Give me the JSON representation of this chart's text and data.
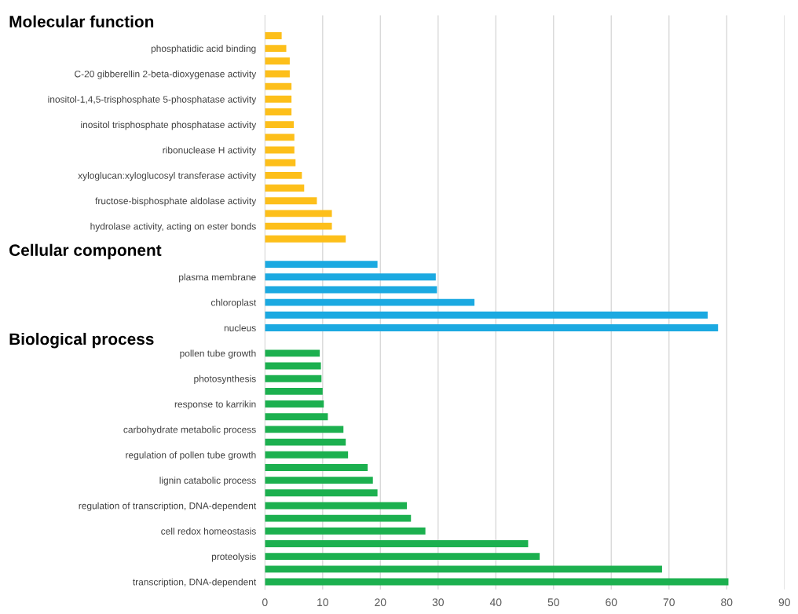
{
  "chart_data": {
    "type": "bar",
    "orientation": "horizontal",
    "grid": "x",
    "legend": false,
    "annotations": [
      "Molecular function",
      "Cellular component",
      "Biological process"
    ],
    "categories": [
      null,
      "phosphatidic acid binding",
      null,
      "C-20 gibberellin 2-beta-dioxygenase activity",
      null,
      "inositol-1,4,5-trisphosphate 5-phosphatase activity",
      null,
      "inositol trisphosphate phosphatase activity",
      null,
      "ribonuclease H activity",
      null,
      "xyloglucan:xyloglucosyl transferase activity",
      null,
      "fructose-bisphosphate aldolase activity",
      null,
      "hydrolase activity, acting on ester bonds",
      null,
      null,
      null,
      "plasma membrane",
      null,
      "chloroplast",
      null,
      "nucleus",
      null,
      "pollen tube growth",
      null,
      "photosynthesis",
      null,
      "response to karrikin",
      null,
      "carbohydrate metabolic process",
      null,
      "regulation of pollen tube growth",
      null,
      "lignin catabolic process",
      null,
      "regulation of transcription, DNA-dependent",
      null,
      "cell redox homeostasis",
      null,
      "proteolysis",
      null,
      "transcription, DNA-dependent"
    ],
    "series": [
      {
        "color": "#fdbf1a",
        "values": [
          2.9,
          3.7,
          4.3,
          4.3,
          4.6,
          4.6,
          4.6,
          5.0,
          5.1,
          5.1,
          5.3,
          6.4,
          6.8,
          9.0,
          11.6,
          11.6,
          14.0,
          null,
          null,
          null,
          null,
          null,
          null,
          null,
          null,
          null,
          null,
          null,
          null,
          null,
          null,
          null,
          null,
          null,
          null,
          null,
          null,
          null,
          null,
          null,
          null,
          null,
          null,
          null
        ]
      },
      {
        "color": "#1ba9e1",
        "values": [
          null,
          null,
          null,
          null,
          null,
          null,
          null,
          null,
          null,
          null,
          null,
          null,
          null,
          null,
          null,
          null,
          null,
          null,
          19.5,
          29.6,
          29.8,
          36.3,
          76.7,
          78.5,
          null,
          null,
          null,
          null,
          null,
          null,
          null,
          null,
          null,
          null,
          null,
          null,
          null,
          null,
          null,
          null,
          null,
          null,
          null,
          null
        ]
      },
      {
        "color": "#1cb04f",
        "values": [
          null,
          null,
          null,
          null,
          null,
          null,
          null,
          null,
          null,
          null,
          null,
          null,
          null,
          null,
          null,
          null,
          null,
          null,
          null,
          null,
          null,
          null,
          null,
          null,
          null,
          9.5,
          9.7,
          9.8,
          10.0,
          10.2,
          10.9,
          13.6,
          14.0,
          14.4,
          17.8,
          18.7,
          19.5,
          24.6,
          25.3,
          27.8,
          45.6,
          47.6,
          68.8,
          80.3
        ]
      }
    ],
    "xlim": [
      0,
      90
    ],
    "xticks": [
      0,
      10,
      20,
      30,
      40,
      50,
      60,
      70,
      80,
      90
    ]
  }
}
